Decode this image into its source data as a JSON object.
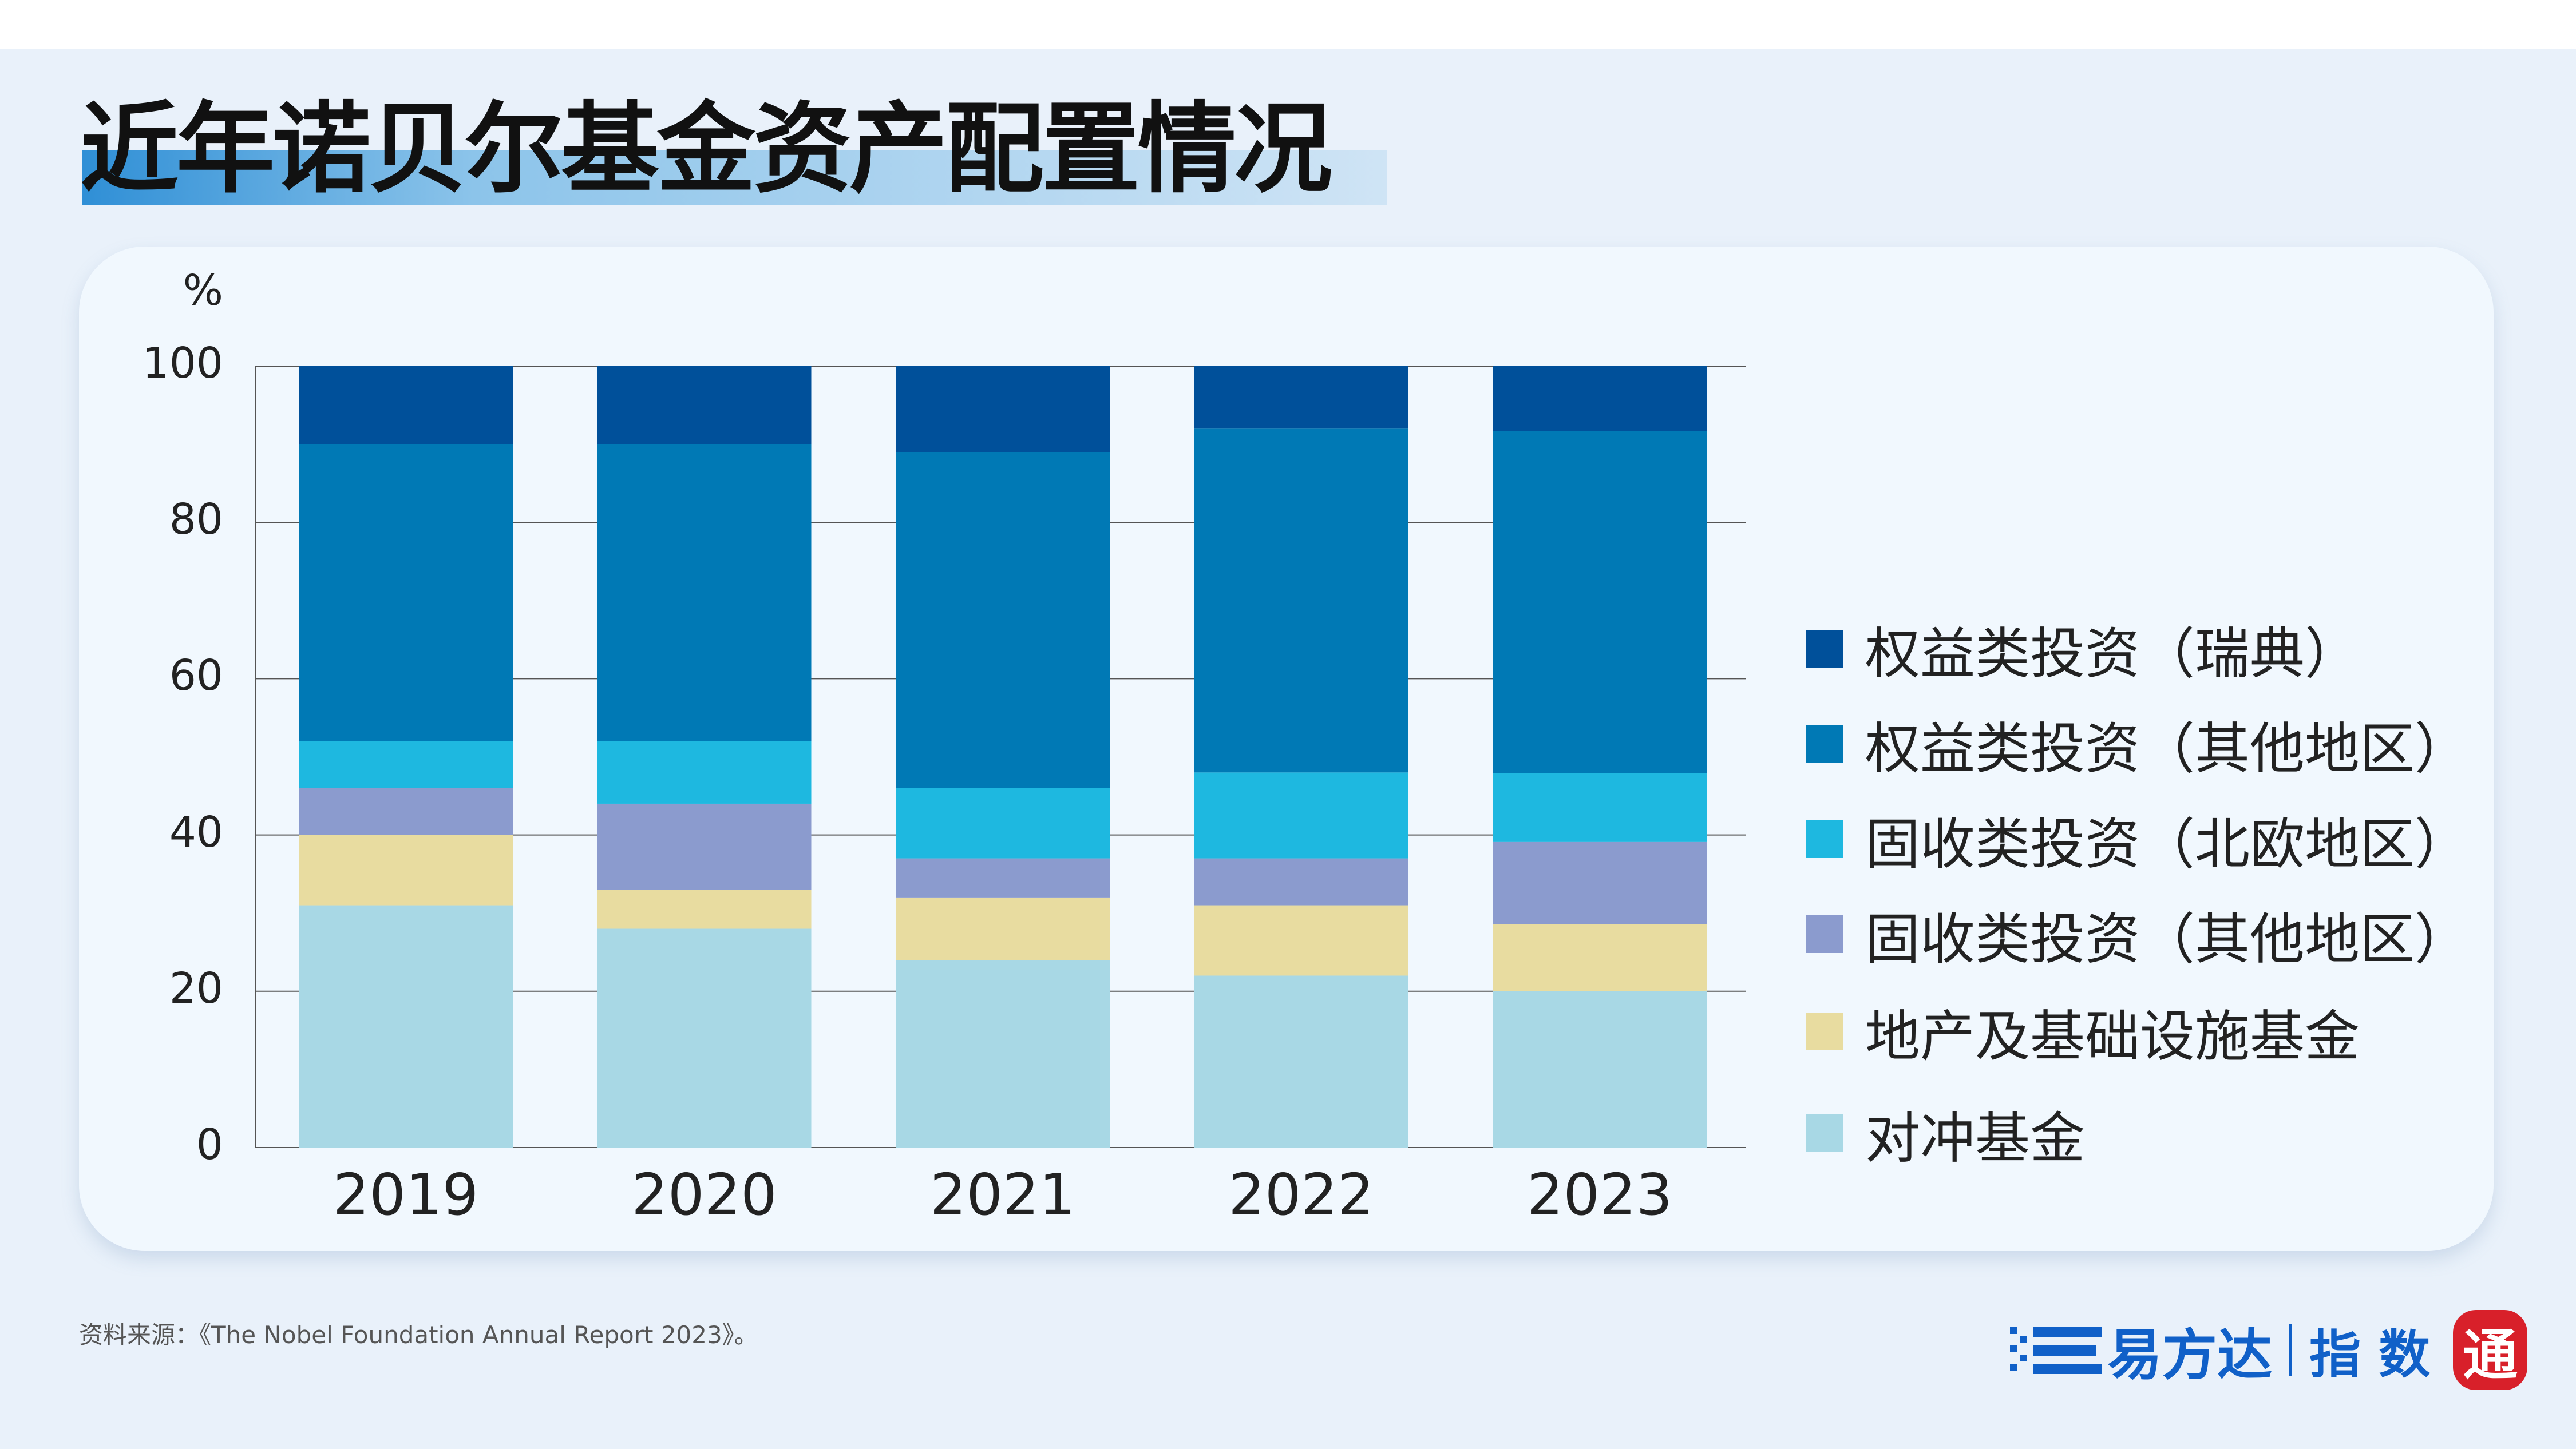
{
  "title": "近年诺贝尔基金资产配置情况",
  "source": "资料来源：《The Nobel Foundation Annual Report 2023》。",
  "logo": {
    "brand": "易方达",
    "suffix": "指 数",
    "seal": "通"
  },
  "chart_data": {
    "type": "stacked-bar",
    "title": "",
    "ylabel": "%",
    "ylim": [
      0,
      100
    ],
    "yticks": [
      "0",
      "20",
      "40",
      "60",
      "80",
      "100"
    ],
    "grid": true,
    "legend_position": "right",
    "categories": [
      "2019",
      "2020",
      "2021",
      "2022",
      "2023"
    ],
    "series": [
      {
        "name": "对冲基金",
        "color": "#a8d8e5",
        "values": [
          31,
          28,
          24,
          22,
          20
        ]
      },
      {
        "name": "地产及基础设施基金",
        "color": "#e8dca0",
        "values": [
          9,
          5,
          8,
          9,
          8.6
        ]
      },
      {
        "name": "固收类投资（其他地区）",
        "color": "#8b9bce",
        "values": [
          6,
          11,
          5,
          6,
          10.5
        ]
      },
      {
        "name": "固收类投资（北欧地区）",
        "color": "#1eb8e0",
        "values": [
          6,
          8,
          9,
          11,
          8.8
        ]
      },
      {
        "name": "权益类投资（其他地区）",
        "color": "#0079b5",
        "values": [
          38,
          38,
          43,
          44,
          43.8
        ]
      },
      {
        "name": "权益类投资（瑞典）",
        "color": "#00509a",
        "values": [
          10,
          10,
          11,
          8,
          8.3
        ]
      }
    ]
  }
}
